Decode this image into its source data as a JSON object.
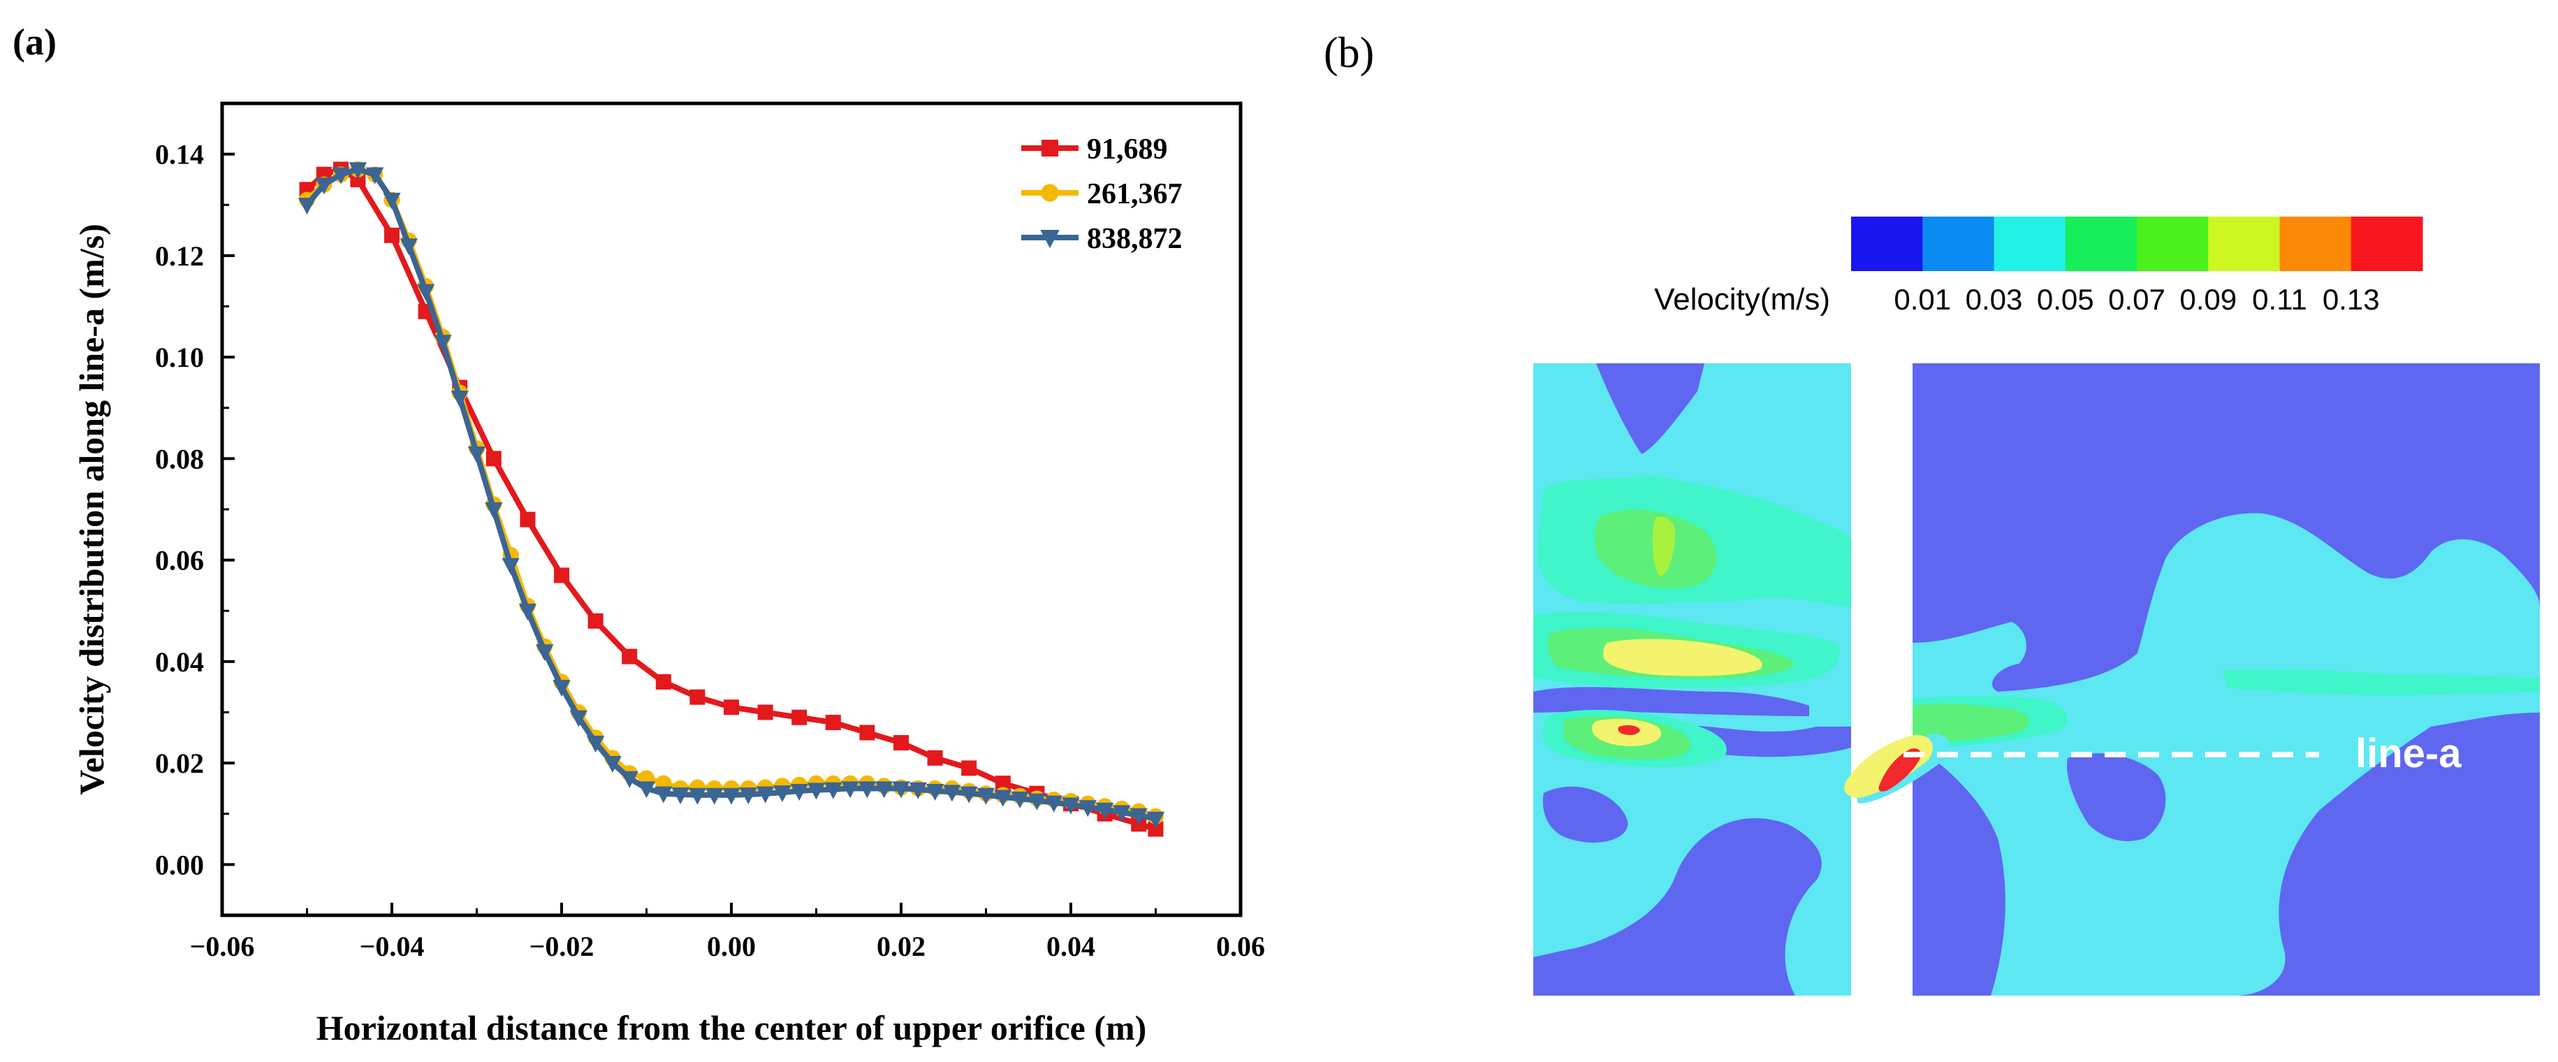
{
  "panel_a": {
    "label": "(a)",
    "chart_data": {
      "type": "line",
      "title": "",
      "xlabel": "Horizontal distance from the center of upper orifice (m)",
      "ylabel": "Velocity distribution along line-a (m/s)",
      "xlim": [
        -0.06,
        0.06
      ],
      "ylim": [
        -0.01,
        0.15
      ],
      "xticks": [
        -0.06,
        -0.04,
        -0.02,
        0.0,
        0.02,
        0.04,
        0.06
      ],
      "xtick_labels": [
        "−0.06",
        "−0.04",
        "−0.02",
        "0.00",
        "0.02",
        "0.04",
        "0.06"
      ],
      "yticks": [
        0.0,
        0.02,
        0.04,
        0.06,
        0.08,
        0.1,
        0.12,
        0.14
      ],
      "ytick_labels": [
        "0.00",
        "0.02",
        "0.04",
        "0.06",
        "0.08",
        "0.10",
        "0.12",
        "0.14"
      ],
      "grid": false,
      "legend_position": "top-right",
      "x": [
        -0.05,
        -0.048,
        -0.046,
        -0.044,
        -0.042,
        -0.04,
        -0.038,
        -0.036,
        -0.034,
        -0.032,
        -0.03,
        -0.028,
        -0.026,
        -0.024,
        -0.022,
        -0.02,
        -0.018,
        -0.016,
        -0.014,
        -0.012,
        -0.01,
        -0.008,
        -0.006,
        -0.004,
        -0.002,
        0.0,
        0.002,
        0.004,
        0.006,
        0.008,
        0.01,
        0.012,
        0.014,
        0.016,
        0.018,
        0.02,
        0.022,
        0.024,
        0.026,
        0.028,
        0.03,
        0.032,
        0.034,
        0.036,
        0.038,
        0.04,
        0.042,
        0.044,
        0.046,
        0.048,
        0.05
      ],
      "series": [
        {
          "name": "91,689",
          "color": "#e3191c",
          "marker": "square",
          "x": [
            -0.05,
            -0.048,
            -0.046,
            -0.044,
            -0.04,
            -0.036,
            -0.032,
            -0.028,
            -0.024,
            -0.02,
            -0.016,
            -0.012,
            -0.008,
            -0.004,
            0.0,
            0.004,
            0.008,
            0.012,
            0.016,
            0.02,
            0.024,
            0.028,
            0.032,
            0.036,
            0.04,
            0.044,
            0.048,
            0.05
          ],
          "values": [
            0.133,
            0.136,
            0.137,
            0.135,
            0.124,
            0.109,
            0.094,
            0.08,
            0.068,
            0.057,
            0.048,
            0.041,
            0.036,
            0.033,
            0.031,
            0.03,
            0.029,
            0.028,
            0.026,
            0.024,
            0.021,
            0.019,
            0.016,
            0.014,
            0.012,
            0.01,
            0.008,
            0.007
          ]
        },
        {
          "name": "261,367",
          "color": "#f5b800",
          "marker": "circle",
          "values": [
            0.131,
            0.134,
            0.136,
            0.137,
            0.136,
            0.131,
            0.123,
            0.114,
            0.104,
            0.093,
            0.082,
            0.071,
            0.061,
            0.051,
            0.043,
            0.036,
            0.03,
            0.025,
            0.021,
            0.018,
            0.017,
            0.016,
            0.015,
            0.0152,
            0.015,
            0.015,
            0.015,
            0.0152,
            0.0155,
            0.0157,
            0.016,
            0.016,
            0.016,
            0.016,
            0.0155,
            0.0152,
            0.015,
            0.015,
            0.015,
            0.0145,
            0.014,
            0.0137,
            0.0135,
            0.013,
            0.0128,
            0.0125,
            0.012,
            0.0115,
            0.011,
            0.0105,
            0.0095
          ]
        },
        {
          "name": "838,872",
          "color": "#3a6594",
          "marker": "triangle-down",
          "values": [
            0.13,
            0.134,
            0.136,
            0.137,
            0.136,
            0.131,
            0.122,
            0.113,
            0.103,
            0.092,
            0.081,
            0.07,
            0.059,
            0.05,
            0.042,
            0.035,
            0.029,
            0.024,
            0.02,
            0.017,
            0.015,
            0.014,
            0.0138,
            0.0137,
            0.0137,
            0.0137,
            0.0138,
            0.014,
            0.0142,
            0.0145,
            0.0147,
            0.0148,
            0.015,
            0.015,
            0.015,
            0.015,
            0.0148,
            0.0145,
            0.0143,
            0.014,
            0.0137,
            0.0133,
            0.013,
            0.0126,
            0.0122,
            0.0118,
            0.0113,
            0.0108,
            0.0103,
            0.0097,
            0.009
          ]
        }
      ]
    }
  },
  "panel_b": {
    "label": "(b)",
    "colorbar": {
      "title": "Velocity(m/s)",
      "tick_labels": [
        "0.01",
        "0.03",
        "0.05",
        "0.07",
        "0.09",
        "0.11",
        "0.13"
      ],
      "colors": [
        "#1a16f0",
        "#0a8bf2",
        "#22f2e6",
        "#18ee5a",
        "#4bf11c",
        "#cdf720",
        "#fc8a08",
        "#f8161e"
      ]
    },
    "contour_colors": {
      "background": "#5f67f0",
      "level_1": "#5de7f2",
      "level_2": "#3ff5c9",
      "level_3": "#5cf07a",
      "level_4": "#a8f23e",
      "level_5": "#f4f36e",
      "level_6": "#f8b04a",
      "level_7": "#f2282c"
    },
    "line_label": "line-a"
  }
}
